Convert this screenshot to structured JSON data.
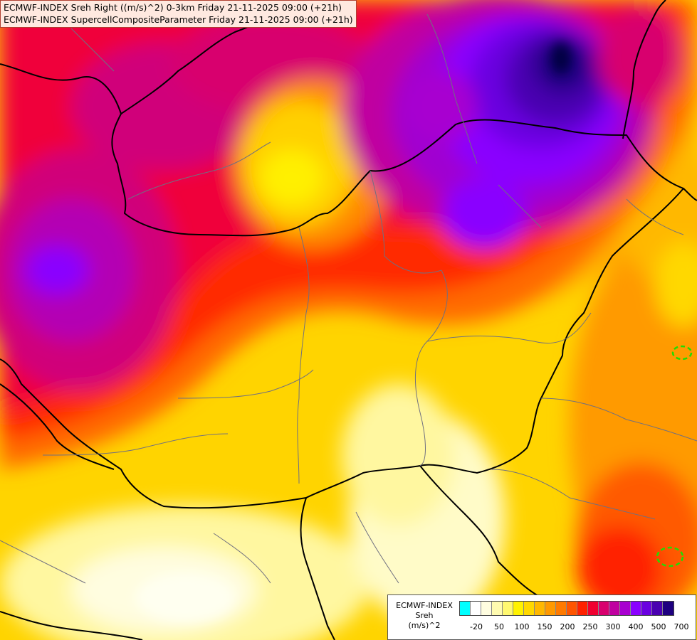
{
  "header": {
    "line1": "ECMWF-INDEX Sreh Right ((m/s)^2) 0-3km Friday 21-11-2025 09:00 (+21h)",
    "line2": "ECMWF-INDEX SupercellCompositeParameter Friday 21-11-2025 09:00 (+21h)"
  },
  "legend": {
    "title_line1": "ECMWF-INDEX",
    "title_line2": "Sreh",
    "title_line3": "(m/s)^2",
    "colors": [
      "#00ffff",
      "#ffffff",
      "#fffde0",
      "#fffbb0",
      "#fff870",
      "#fff200",
      "#ffd800",
      "#ffb800",
      "#ff9900",
      "#ff7a00",
      "#ff5500",
      "#ff2200",
      "#f00030",
      "#d8006e",
      "#c000a0",
      "#a800d0",
      "#8a00ff",
      "#6a00e0",
      "#4a00b0",
      "#1e0080"
    ],
    "ticks": [
      {
        "label": "-20",
        "index": 1
      },
      {
        "label": "50",
        "index": 3
      },
      {
        "label": "100",
        "index": 5
      },
      {
        "label": "150",
        "index": 7
      },
      {
        "label": "200",
        "index": 9
      },
      {
        "label": "250",
        "index": 11
      },
      {
        "label": "300",
        "index": 13
      },
      {
        "label": "400",
        "index": 15
      },
      {
        "label": "500",
        "index": 17
      },
      {
        "label": "700",
        "index": 19
      }
    ]
  }
}
